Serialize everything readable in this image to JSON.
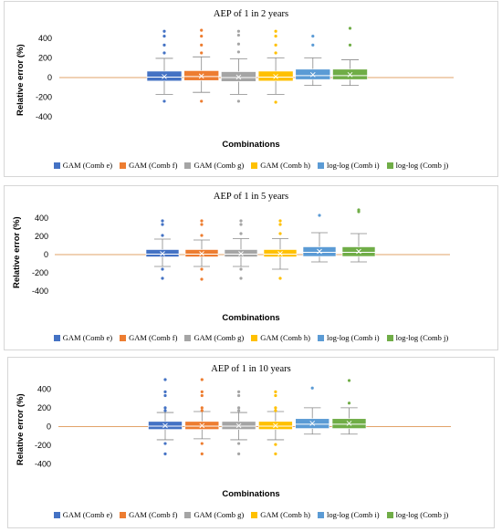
{
  "chart_data": [
    {
      "type": "box",
      "title": "AEP of 1 in 2 years",
      "xlabel": "Combinations",
      "ylabel": "Relative error (%)",
      "ylim": [
        -500,
        500
      ],
      "yticks": [
        400,
        200,
        0,
        -200,
        -400
      ],
      "reference_line": 0,
      "legend_position": "bottom",
      "series": [
        {
          "name": "GAM (Comb e)",
          "color": "#4472C4",
          "min": -170,
          "q1": -35,
          "median": 5,
          "q3": 65,
          "max": 195,
          "mean": 10,
          "outliers": [
            470,
            420,
            330,
            250,
            -240
          ]
        },
        {
          "name": "GAM (Comb f)",
          "color": "#ED7D31",
          "min": -150,
          "q1": -30,
          "median": 10,
          "q3": 70,
          "max": 210,
          "mean": 15,
          "outliers": [
            480,
            420,
            330,
            250,
            -240
          ]
        },
        {
          "name": "GAM (Comb g)",
          "color": "#A5A5A5",
          "min": -170,
          "q1": -40,
          "median": 0,
          "q3": 60,
          "max": 190,
          "mean": 5,
          "outliers": [
            470,
            430,
            340,
            260,
            -240
          ]
        },
        {
          "name": "GAM (Comb h)",
          "color": "#FFC000",
          "min": -170,
          "q1": -35,
          "median": 5,
          "q3": 65,
          "max": 200,
          "mean": 10,
          "outliers": [
            470,
            420,
            330,
            250,
            -250
          ]
        },
        {
          "name": "log-log (Comb i)",
          "color": "#5B9BD5",
          "min": -80,
          "q1": -20,
          "median": 20,
          "q3": 85,
          "max": 200,
          "mean": 30,
          "outliers": [
            420,
            330
          ]
        },
        {
          "name": "log-log (Comb j)",
          "color": "#70AD47",
          "min": -80,
          "q1": -20,
          "median": 20,
          "q3": 85,
          "max": 180,
          "mean": 30,
          "outliers": [
            500,
            330
          ]
        }
      ]
    },
    {
      "type": "box",
      "title": "AEP of 1 in 5 years",
      "xlabel": "Combinations",
      "ylabel": "Relative error (%)",
      "ylim": [
        -500,
        500
      ],
      "yticks": [
        400,
        200,
        0,
        -200,
        -400
      ],
      "reference_line": 0,
      "legend_position": "bottom",
      "series": [
        {
          "name": "GAM (Comb e)",
          "color": "#4472C4",
          "min": -130,
          "q1": -25,
          "median": 5,
          "q3": 55,
          "max": 170,
          "mean": 10,
          "outliers": [
            370,
            330,
            210,
            -160,
            -260
          ]
        },
        {
          "name": "GAM (Comb f)",
          "color": "#ED7D31",
          "min": -130,
          "q1": -25,
          "median": 5,
          "q3": 55,
          "max": 160,
          "mean": 10,
          "outliers": [
            370,
            330,
            210,
            -160,
            -270
          ]
        },
        {
          "name": "GAM (Comb g)",
          "color": "#A5A5A5",
          "min": -130,
          "q1": -25,
          "median": 5,
          "q3": 55,
          "max": 175,
          "mean": 10,
          "outliers": [
            370,
            330,
            230,
            -160,
            -260
          ]
        },
        {
          "name": "GAM (Comb h)",
          "color": "#FFC000",
          "min": -160,
          "q1": -25,
          "median": 5,
          "q3": 55,
          "max": 175,
          "mean": 10,
          "outliers": [
            370,
            330,
            230,
            -260
          ]
        },
        {
          "name": "log-log (Comb i)",
          "color": "#5B9BD5",
          "min": -80,
          "q1": -20,
          "median": 25,
          "q3": 85,
          "max": 240,
          "mean": 35,
          "outliers": [
            430
          ]
        },
        {
          "name": "log-log (Comb j)",
          "color": "#70AD47",
          "min": -80,
          "q1": -20,
          "median": 25,
          "q3": 85,
          "max": 230,
          "mean": 35,
          "outliers": [
            490,
            470
          ]
        }
      ]
    },
    {
      "type": "box",
      "title": "AEP of 1 in 10 years",
      "xlabel": "Combinations",
      "ylabel": "Relative error (%)",
      "ylim": [
        -500,
        500
      ],
      "yticks": [
        400,
        200,
        0,
        -200,
        -400
      ],
      "reference_line": 0,
      "legend_position": "bottom",
      "series": [
        {
          "name": "GAM (Comb e)",
          "color": "#4472C4",
          "min": -140,
          "q1": -30,
          "median": 5,
          "q3": 55,
          "max": 150,
          "mean": 10,
          "outliers": [
            500,
            370,
            330,
            200,
            170,
            -180,
            -290
          ]
        },
        {
          "name": "GAM (Comb f)",
          "color": "#ED7D31",
          "min": -130,
          "q1": -30,
          "median": 5,
          "q3": 55,
          "max": 160,
          "mean": 10,
          "outliers": [
            500,
            370,
            330,
            200,
            170,
            -180,
            -290
          ]
        },
        {
          "name": "GAM (Comb g)",
          "color": "#A5A5A5",
          "min": -140,
          "q1": -30,
          "median": 5,
          "q3": 55,
          "max": 150,
          "mean": 10,
          "outliers": [
            370,
            330,
            200,
            170,
            -180,
            -290
          ]
        },
        {
          "name": "GAM (Comb h)",
          "color": "#FFC000",
          "min": -140,
          "q1": -30,
          "median": 5,
          "q3": 55,
          "max": 160,
          "mean": 10,
          "outliers": [
            370,
            330,
            200,
            170,
            -190,
            -290
          ]
        },
        {
          "name": "log-log (Comb i)",
          "color": "#5B9BD5",
          "min": -80,
          "q1": -20,
          "median": 25,
          "q3": 85,
          "max": 200,
          "mean": 35,
          "outliers": [
            410
          ]
        },
        {
          "name": "log-log (Comb j)",
          "color": "#70AD47",
          "min": -80,
          "q1": -20,
          "median": 25,
          "q3": 85,
          "max": 200,
          "mean": 35,
          "outliers": [
            490,
            250
          ]
        }
      ]
    }
  ]
}
